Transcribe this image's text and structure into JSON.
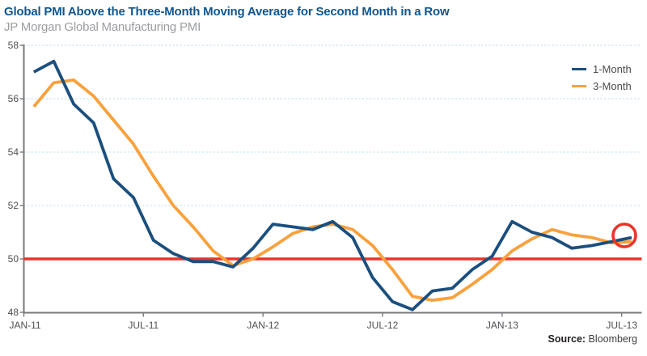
{
  "header": {
    "title": "Global PMI Above the Three-Month Moving Average for Second Month in a Row",
    "subtitle": "JP Morgan Global Manufacturing PMI"
  },
  "legend": {
    "items": [
      {
        "label": "1-Month",
        "color": "#1b4f7e"
      },
      {
        "label": "3-Month",
        "color": "#f9a13c"
      }
    ]
  },
  "source": {
    "label": "Source:",
    "value": "Bloomberg"
  },
  "colors": {
    "title_blue": "#10568f",
    "subtitle_gray": "#9b9da0",
    "series_blue": "#1b4f7e",
    "series_orange": "#f9a13c",
    "reference_red": "#e8352b",
    "gridline_blue": "#c3e0ef",
    "axis_gray": "#77797c",
    "axis_text_gray": "#4d4f52"
  },
  "chart_data": {
    "type": "line",
    "title": "Global PMI Above the Three-Month Moving Average for Second Month in a Row",
    "subtitle": "JP Morgan Global Manufacturing PMI",
    "xlabel": "",
    "ylabel": "",
    "ylim": [
      48,
      58
    ],
    "y_ticks": [
      48,
      50,
      52,
      54,
      56,
      58
    ],
    "x_tick_labels": [
      "JAN-11",
      "JUL-11",
      "JAN-12",
      "JUL-12",
      "JAN-13",
      "JUL-13"
    ],
    "grid": "horizontal-dotted",
    "legend_position": "top-right",
    "reference_line": {
      "value": 50,
      "color": "#e8352b"
    },
    "annotation": {
      "type": "circle",
      "target": "last point (JUL-13)",
      "color": "#e8352b"
    },
    "categories": [
      "JAN-11",
      "FEB-11",
      "MAR-11",
      "APR-11",
      "MAY-11",
      "JUN-11",
      "JUL-11",
      "AUG-11",
      "SEP-11",
      "OCT-11",
      "NOV-11",
      "DEC-11",
      "JAN-12",
      "FEB-12",
      "MAR-12",
      "APR-12",
      "MAY-12",
      "JUN-12",
      "JUL-12",
      "AUG-12",
      "SEP-12",
      "OCT-12",
      "NOV-12",
      "DEC-12",
      "JAN-13",
      "FEB-13",
      "MAR-13",
      "APR-13",
      "MAY-13",
      "JUN-13",
      "JUL-13"
    ],
    "series": [
      {
        "name": "1-Month",
        "color": "#1b4f7e",
        "values": [
          57.0,
          57.4,
          55.8,
          55.1,
          53.0,
          52.3,
          50.7,
          50.2,
          49.9,
          49.9,
          49.7,
          50.4,
          51.3,
          51.2,
          51.1,
          51.4,
          50.8,
          49.3,
          48.4,
          48.1,
          48.8,
          48.9,
          49.6,
          50.1,
          51.4,
          51.0,
          50.8,
          50.4,
          50.5,
          50.65,
          50.8
        ]
      },
      {
        "name": "3-Month",
        "color": "#f9a13c",
        "values": [
          55.7,
          56.6,
          56.7,
          56.1,
          55.2,
          54.3,
          53.1,
          52.0,
          51.2,
          50.3,
          49.75,
          50.0,
          50.45,
          50.95,
          51.2,
          51.3,
          51.1,
          50.5,
          49.6,
          48.6,
          48.45,
          48.55,
          49.05,
          49.6,
          50.3,
          50.75,
          51.1,
          50.9,
          50.8,
          50.6,
          50.65
        ]
      }
    ]
  }
}
